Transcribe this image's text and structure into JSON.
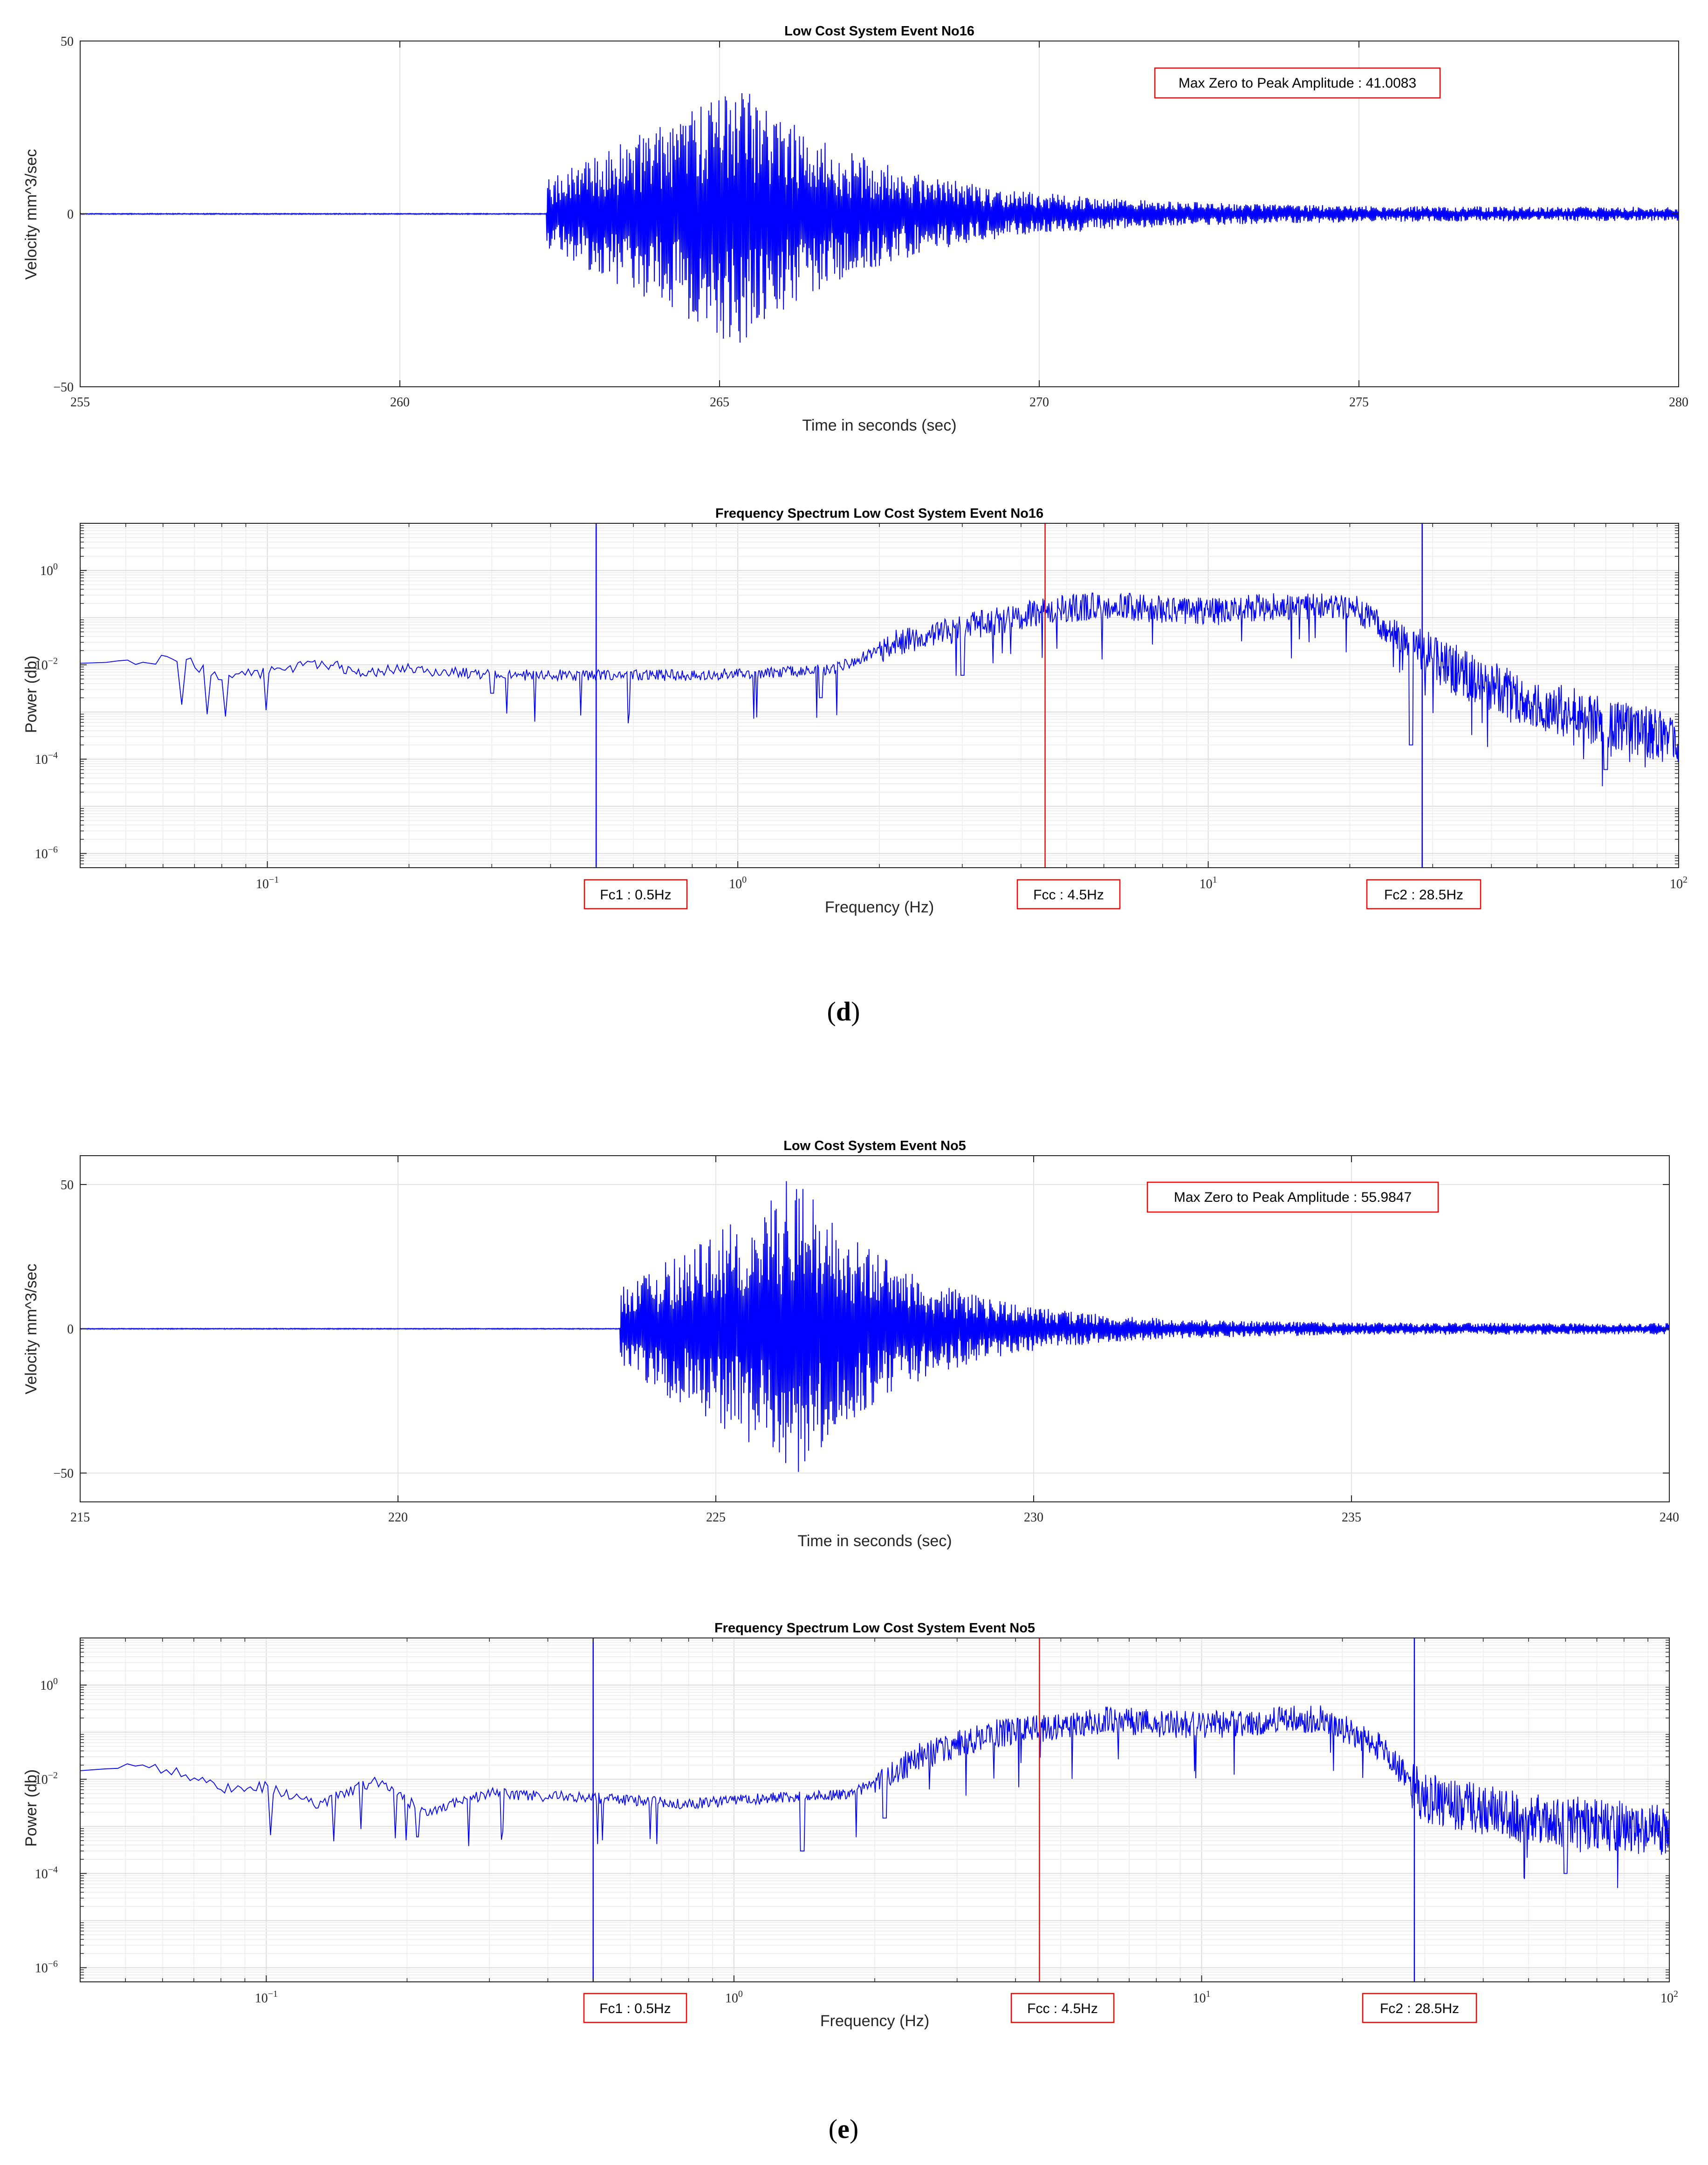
{
  "panels": [
    {
      "label_open": "(",
      "letter": "d",
      "label_close": ")"
    },
    {
      "label_open": "(",
      "letter": "e",
      "label_close": ")"
    }
  ],
  "chart_data": [
    {
      "type": "line",
      "title": "Low Cost System Event No16",
      "xlabel": "Time in seconds (sec)",
      "ylabel": "Velocity mm^3/sec",
      "xlim": [
        255,
        280
      ],
      "ylim": [
        -50,
        50
      ],
      "xticks": [
        255,
        260,
        265,
        270,
        275,
        280
      ],
      "yticks": [
        -50,
        0,
        50
      ],
      "grid": true,
      "series_color": "#0000ff",
      "annotation": "Max Zero to Peak Amplitude : 41.0083",
      "annotation_position": "top-right",
      "series": [
        {
          "name": "velocity",
          "description": "seismic velocity trace",
          "onset_time": 262.3,
          "peak_time": 265.0,
          "peak_amplitude": 41.0083,
          "decay_time": 2.2,
          "tail_amplitude": 2.0,
          "points": 2500
        }
      ]
    },
    {
      "type": "line",
      "scale": "loglog",
      "title": "Frequency Spectrum Low Cost System Event No16",
      "xlabel": "Frequency (Hz)",
      "ylabel": "Power (db)",
      "xlim": [
        0.04,
        100
      ],
      "ylim": [
        5e-07,
        10
      ],
      "xticks": [
        {
          "base": "10",
          "exp": "−1",
          "value": 0.1
        },
        {
          "base": "10",
          "exp": "0",
          "value": 1
        },
        {
          "base": "10",
          "exp": "1",
          "value": 10
        },
        {
          "base": "10",
          "exp": "2",
          "value": 100
        }
      ],
      "yticks": [
        {
          "base": "10",
          "exp": "−6",
          "value": 1e-06
        },
        {
          "base": "10",
          "exp": "−4",
          "value": 0.0001
        },
        {
          "base": "10",
          "exp": "−2",
          "value": 0.01
        },
        {
          "base": "10",
          "exp": "0",
          "value": 1
        }
      ],
      "grid": true,
      "series_color": "#0000ff",
      "vlines": [
        {
          "x": 0.5,
          "color": "#0000ff",
          "label": "Fc1 : 0.5Hz"
        },
        {
          "x": 4.5,
          "color": "#ff0000",
          "label": "Fcc : 4.5Hz"
        },
        {
          "x": 28.5,
          "color": "#0000ff",
          "label": "Fc2 : 28.5Hz"
        }
      ],
      "series": [
        {
          "name": "power",
          "description": "power spectrum",
          "anchor_x": [
            0.04,
            0.064,
            0.08,
            0.1,
            0.13,
            0.16,
            0.2,
            0.3,
            0.5,
            0.8,
            1.2,
            1.6,
            2.2,
            3.0,
            4.5,
            6.0,
            10,
            15,
            20,
            26,
            35,
            50,
            100
          ],
          "anchor_y": [
            0.009,
            0.014,
            0.006,
            0.007,
            0.011,
            0.007,
            0.008,
            0.006,
            0.006,
            0.006,
            0.007,
            0.008,
            0.03,
            0.06,
            0.14,
            0.18,
            0.13,
            0.18,
            0.18,
            0.035,
            0.006,
            0.0015,
            0.00025
          ],
          "dips": [
            {
              "x": 0.3,
              "y": 0.0025
            },
            {
              "x": 1.5,
              "y": 0.002
            },
            {
              "x": 3.0,
              "y": 0.006
            },
            {
              "x": 27,
              "y": 0.0002
            },
            {
              "x": 70,
              "y": 6e-05
            }
          ],
          "points": 1800
        }
      ]
    },
    {
      "type": "line",
      "title": "Low Cost System Event No5",
      "xlabel": "Time in seconds (sec)",
      "ylabel": "Velocity mm^3/sec",
      "xlim": [
        215,
        240
      ],
      "ylim": [
        -60,
        60
      ],
      "xticks": [
        215,
        220,
        225,
        230,
        235,
        240
      ],
      "yticks": [
        -50,
        0,
        50
      ],
      "grid": true,
      "series_color": "#0000ff",
      "annotation": "Max Zero to Peak Amplitude : 55.9847",
      "annotation_position": "top-right",
      "series": [
        {
          "name": "velocity",
          "description": "seismic velocity trace",
          "onset_time": 223.5,
          "peak_time": 226.1,
          "peak_amplitude": 55.9847,
          "decay_time": 1.7,
          "tail_amplitude": 2.0,
          "points": 2500
        }
      ]
    },
    {
      "type": "line",
      "scale": "loglog",
      "title": "Frequency Spectrum Low Cost System Event No5",
      "xlabel": "Frequency (Hz)",
      "ylabel": "Power (db)",
      "xlim": [
        0.04,
        100
      ],
      "ylim": [
        5e-07,
        10
      ],
      "xticks": [
        {
          "base": "10",
          "exp": "−1",
          "value": 0.1
        },
        {
          "base": "10",
          "exp": "0",
          "value": 1
        },
        {
          "base": "10",
          "exp": "1",
          "value": 10
        },
        {
          "base": "10",
          "exp": "2",
          "value": 100
        }
      ],
      "yticks": [
        {
          "base": "10",
          "exp": "−6",
          "value": 1e-06
        },
        {
          "base": "10",
          "exp": "−4",
          "value": 0.0001
        },
        {
          "base": "10",
          "exp": "−2",
          "value": 0.01
        },
        {
          "base": "10",
          "exp": "0",
          "value": 1
        }
      ],
      "grid": true,
      "series_color": "#0000ff",
      "vlines": [
        {
          "x": 0.5,
          "color": "#0000ff",
          "label": "Fc1 : 0.5Hz"
        },
        {
          "x": 4.5,
          "color": "#ff0000",
          "label": "Fcc : 4.5Hz"
        },
        {
          "x": 28.5,
          "color": "#0000ff",
          "label": "Fc2 : 28.5Hz"
        }
      ],
      "series": [
        {
          "name": "power",
          "description": "power spectrum",
          "anchor_x": [
            0.04,
            0.064,
            0.08,
            0.1,
            0.13,
            0.17,
            0.22,
            0.3,
            0.5,
            0.8,
            1.2,
            1.8,
            2.5,
            3.5,
            4.5,
            6.0,
            10,
            15,
            18,
            24,
            30,
            50,
            100
          ],
          "anchor_y": [
            0.02,
            0.015,
            0.006,
            0.007,
            0.003,
            0.009,
            0.002,
            0.005,
            0.004,
            0.003,
            0.004,
            0.005,
            0.03,
            0.09,
            0.12,
            0.18,
            0.14,
            0.18,
            0.2,
            0.05,
            0.004,
            0.0015,
            0.0008
          ],
          "dips": [
            {
              "x": 0.21,
              "y": 0.0006
            },
            {
              "x": 1.4,
              "y": 0.0003
            },
            {
              "x": 2.1,
              "y": 0.0015
            },
            {
              "x": 60,
              "y": 0.0001
            }
          ],
          "points": 1800
        }
      ]
    }
  ]
}
